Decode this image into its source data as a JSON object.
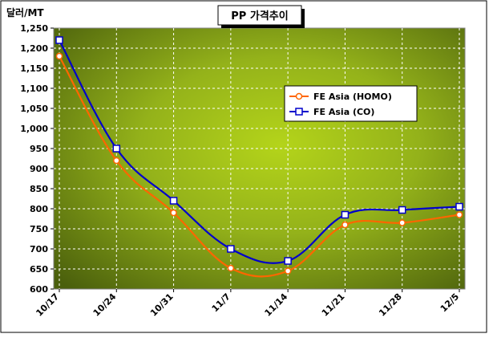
{
  "chart_data": {
    "type": "line",
    "title": "PP 가격추이",
    "ylabel": "달러/MT",
    "xlabel": "",
    "categories": [
      "10/17",
      "10/24",
      "10/31",
      "11/7",
      "11/14",
      "11/21",
      "11/28",
      "12/5"
    ],
    "ylim": [
      600,
      1250
    ],
    "yticks": [
      "600",
      "650",
      "700",
      "750",
      "800",
      "850",
      "900",
      "950",
      "1,000",
      "1,050",
      "1,100",
      "1,150",
      "1,200",
      "1,250"
    ],
    "grid": true,
    "legend_position": "top-right",
    "series": [
      {
        "name": "FE Asia (HOMO)",
        "values": [
          1180,
          920,
          790,
          652,
          645,
          760,
          765,
          785
        ],
        "color": "#ff6600",
        "marker": "circle"
      },
      {
        "name": "FE Asia (CO)",
        "values": [
          1220,
          950,
          820,
          700,
          670,
          785,
          797,
          805
        ],
        "color": "#0000cc",
        "marker": "square"
      }
    ]
  }
}
